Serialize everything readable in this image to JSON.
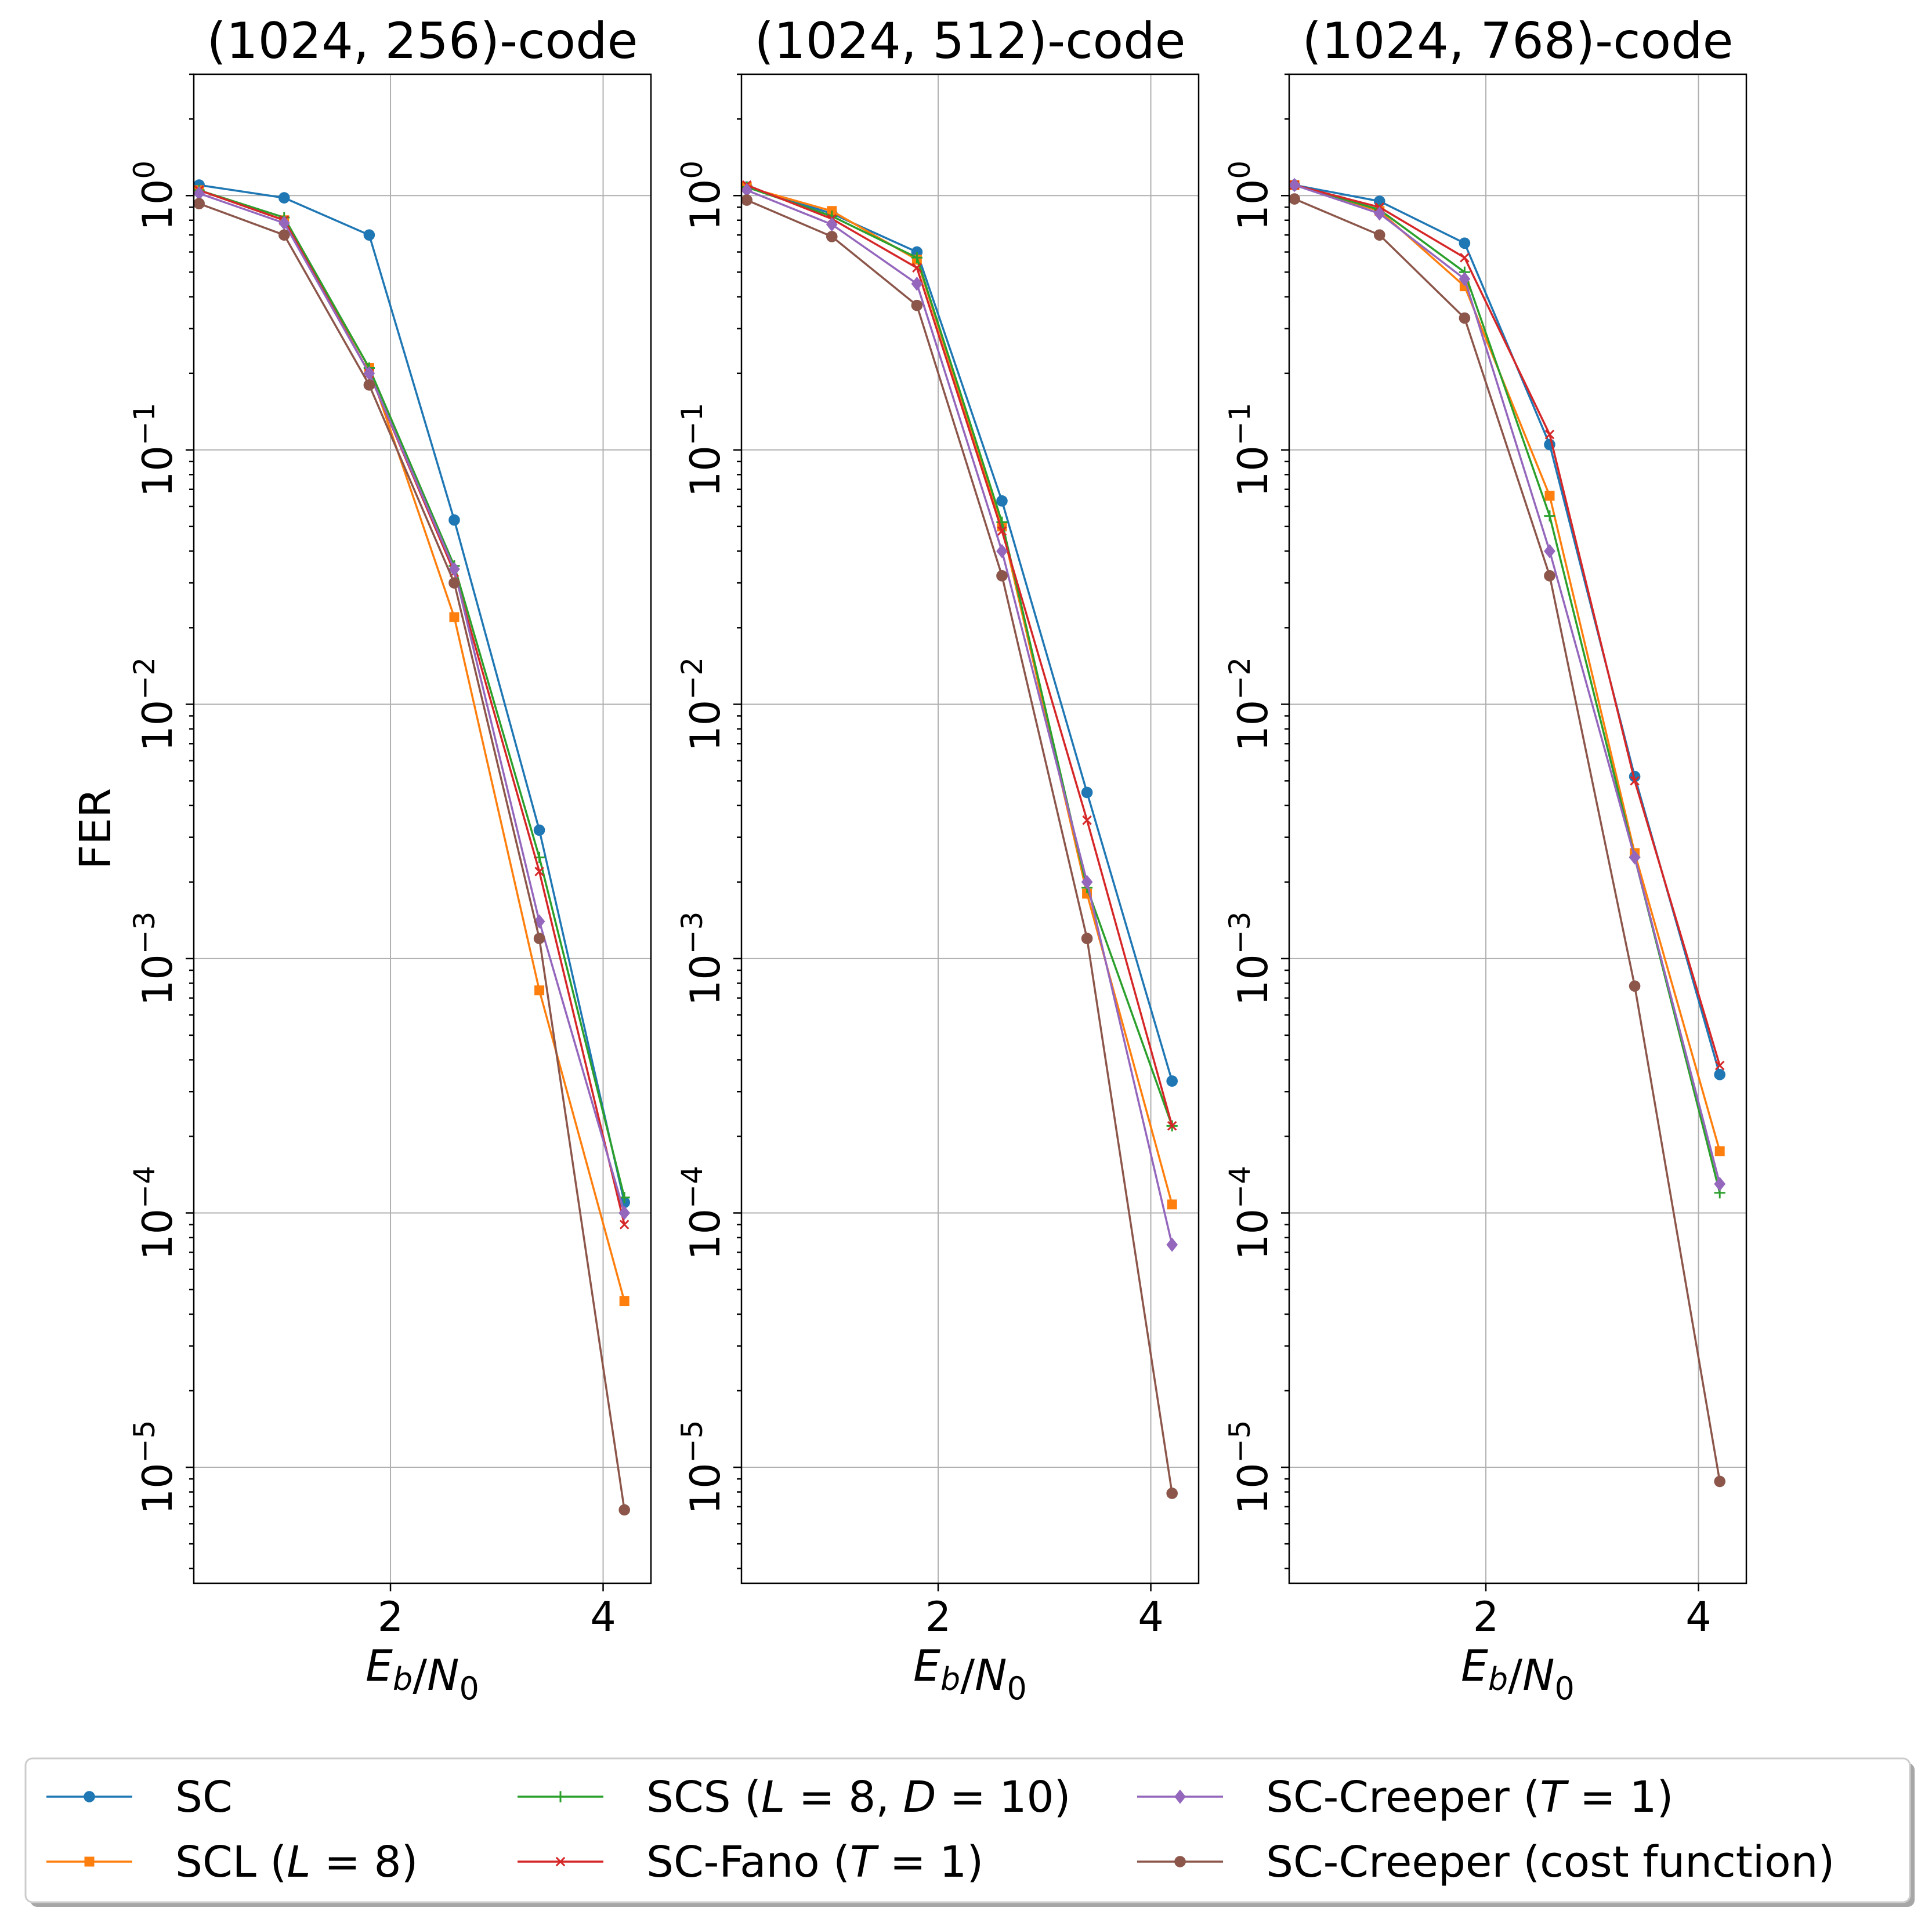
{
  "chart_data": [
    {
      "type": "line",
      "title": "(1024, 256)-code",
      "xlabel": "E_b/N_0",
      "ylabel": "FER",
      "yscale": "log",
      "ylim": [
        3.5e-06,
        3.0
      ],
      "xlim": [
        0.15,
        4.45
      ],
      "xticks": [
        2,
        4
      ],
      "yticks": [
        1,
        0.1,
        0.01,
        0.001,
        0.0001,
        1e-05
      ],
      "ytick_labels": [
        {
          "base": "10",
          "exp": "0"
        },
        {
          "base": "10",
          "exp": "−1"
        },
        {
          "base": "10",
          "exp": "−2"
        },
        {
          "base": "10",
          "exp": "−3"
        },
        {
          "base": "10",
          "exp": "−4"
        },
        {
          "base": "10",
          "exp": "−5"
        }
      ],
      "x": [
        0.2,
        1.0,
        1.8,
        2.6,
        3.4,
        4.2
      ],
      "series": [
        {
          "name": "SC",
          "values": [
            1.1,
            0.98,
            0.7,
            0.053,
            0.0032,
            0.00011
          ]
        },
        {
          "name": "SCL (L = 8)",
          "values": [
            1.05,
            0.8,
            0.21,
            0.022,
            0.00075,
            4.5e-05
          ]
        },
        {
          "name": "SCS (L = 8, D = 10)",
          "values": [
            1.05,
            0.82,
            0.21,
            0.035,
            0.0025,
            0.000115
          ]
        },
        {
          "name": "SC-Fano (T = 1)",
          "values": [
            1.05,
            0.8,
            0.2,
            0.033,
            0.0022,
            9e-05
          ]
        },
        {
          "name": "SC-Creeper (T = 1)",
          "values": [
            1.02,
            0.78,
            0.2,
            0.034,
            0.0014,
            0.0001
          ]
        },
        {
          "name": "SC-Creeper (cost function)",
          "values": [
            0.93,
            0.7,
            0.18,
            0.03,
            0.0012,
            6.8e-06
          ]
        }
      ]
    },
    {
      "type": "line",
      "title": "(1024, 512)-code",
      "xlabel": "E_b/N_0",
      "ylabel": "",
      "yscale": "log",
      "ylim": [
        3.5e-06,
        3.0
      ],
      "xlim": [
        0.15,
        4.45
      ],
      "xticks": [
        2,
        4
      ],
      "yticks": [
        1,
        0.1,
        0.01,
        0.001,
        0.0001,
        1e-05
      ],
      "ytick_labels": [
        {
          "base": "10",
          "exp": "0"
        },
        {
          "base": "10",
          "exp": "−1"
        },
        {
          "base": "10",
          "exp": "−2"
        },
        {
          "base": "10",
          "exp": "−3"
        },
        {
          "base": "10",
          "exp": "−4"
        },
        {
          "base": "10",
          "exp": "−5"
        }
      ],
      "x": [
        0.2,
        1.0,
        1.8,
        2.6,
        3.4,
        4.2
      ],
      "series": [
        {
          "name": "SC",
          "values": [
            1.08,
            0.85,
            0.6,
            0.063,
            0.0045,
            0.00033
          ]
        },
        {
          "name": "SCL (L = 8)",
          "values": [
            1.08,
            0.87,
            0.56,
            0.05,
            0.0018,
            0.000108
          ]
        },
        {
          "name": "SCS (L = 8, D = 10)",
          "values": [
            1.08,
            0.83,
            0.57,
            0.052,
            0.0019,
            0.00022
          ]
        },
        {
          "name": "SC-Fano (T = 1)",
          "values": [
            1.1,
            0.81,
            0.52,
            0.048,
            0.0035,
            0.00022
          ]
        },
        {
          "name": "SC-Creeper (T = 1)",
          "values": [
            1.05,
            0.77,
            0.45,
            0.04,
            0.002,
            7.5e-05
          ]
        },
        {
          "name": "SC-Creeper (cost function)",
          "values": [
            0.96,
            0.69,
            0.37,
            0.032,
            0.0012,
            7.9e-06
          ]
        }
      ]
    },
    {
      "type": "line",
      "title": "(1024, 768)-code",
      "xlabel": "E_b/N_0",
      "ylabel": "",
      "yscale": "log",
      "ylim": [
        3.5e-06,
        3.0
      ],
      "xlim": [
        0.15,
        4.45
      ],
      "xticks": [
        2,
        4
      ],
      "yticks": [
        1,
        0.1,
        0.01,
        0.001,
        0.0001,
        1e-05
      ],
      "ytick_labels": [
        {
          "base": "10",
          "exp": "0"
        },
        {
          "base": "10",
          "exp": "−1"
        },
        {
          "base": "10",
          "exp": "−2"
        },
        {
          "base": "10",
          "exp": "−3"
        },
        {
          "base": "10",
          "exp": "−4"
        },
        {
          "base": "10",
          "exp": "−5"
        }
      ],
      "x": [
        0.2,
        1.0,
        1.8,
        2.6,
        3.4,
        4.2
      ],
      "series": [
        {
          "name": "SC",
          "values": [
            1.1,
            0.95,
            0.65,
            0.105,
            0.0052,
            0.00035
          ]
        },
        {
          "name": "SCL (L = 8)",
          "values": [
            1.1,
            0.87,
            0.44,
            0.066,
            0.0026,
            0.000175
          ]
        },
        {
          "name": "SCS (L = 8, D = 10)",
          "values": [
            1.1,
            0.88,
            0.5,
            0.055,
            0.0025,
            0.00012
          ]
        },
        {
          "name": "SC-Fano (T = 1)",
          "values": [
            1.1,
            0.9,
            0.57,
            0.115,
            0.005,
            0.00038
          ]
        },
        {
          "name": "SC-Creeper (T = 1)",
          "values": [
            1.1,
            0.85,
            0.47,
            0.04,
            0.0025,
            0.00013
          ]
        },
        {
          "name": "SC-Creeper (cost function)",
          "values": [
            0.97,
            0.7,
            0.33,
            0.032,
            0.00078,
            8.8e-06
          ]
        }
      ]
    }
  ],
  "legend": {
    "placement": "bottom",
    "items": [
      {
        "name": "SC",
        "text": "SC",
        "color": "#1f77b4",
        "marker": "circle"
      },
      {
        "name": "SCL (L = 8)",
        "text": "SCL (L = 8)",
        "color": "#ff7f0e",
        "marker": "square"
      },
      {
        "name": "SCS (L = 8, D = 10)",
        "text": "SCS (L = 8, D = 10)",
        "color": "#2ca02c",
        "marker": "plus"
      },
      {
        "name": "SC-Fano (T = 1)",
        "text": "SC-Fano (T = 1)",
        "color": "#d62728",
        "marker": "x"
      },
      {
        "name": "SC-Creeper (T = 1)",
        "text": "SC-Creeper (T = 1)",
        "color": "#9467bd",
        "marker": "diamond"
      },
      {
        "name": "SC-Creeper (cost function)",
        "text": "SC-Creeper (cost function)",
        "color": "#8c564b",
        "marker": "circle"
      }
    ]
  }
}
